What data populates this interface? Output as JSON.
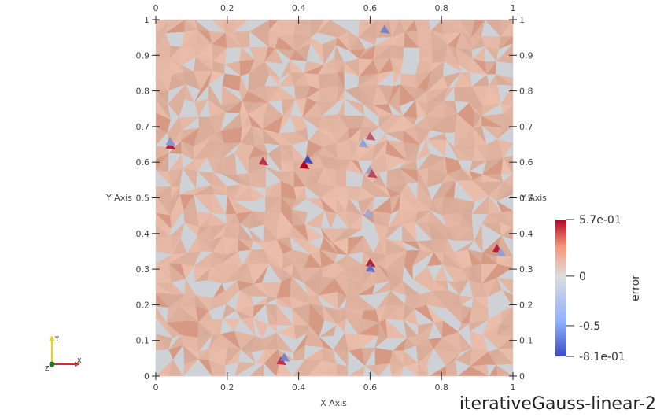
{
  "chart_data": {
    "type": "heatmap",
    "title": "iterativeGauss-linear-2",
    "xlabel": "X Axis",
    "ylabel": "Y Axis",
    "xlim": [
      0,
      1
    ],
    "ylim": [
      0,
      1
    ],
    "x_ticks": [
      "0",
      "0.2",
      "0.4",
      "0.6",
      "0.8",
      "1"
    ],
    "y_ticks": [
      "0",
      "0.1",
      "0.2",
      "0.3",
      "0.4",
      "0.5",
      "0.6",
      "0.7",
      "0.8",
      "0.9",
      "1"
    ],
    "field": "error",
    "color_range": [
      -0.81,
      0.57
    ],
    "colorbar_labels": [
      "5.7e-01",
      "0",
      "-0.5",
      "-8.1e-01"
    ],
    "colorbar_label_values": [
      0.57,
      0,
      -0.5,
      -0.81
    ],
    "colormap": {
      "low": "#3b4cc0",
      "mid": "#dddddd",
      "high": "#b40426"
    },
    "background_cell_color": "#e0b4a0",
    "grid": false,
    "legend": "right",
    "hotspots": [
      {
        "x": 0.04,
        "y": 0.645,
        "value": 0.5
      },
      {
        "x": 0.04,
        "y": 0.655,
        "value": -0.4
      },
      {
        "x": 0.425,
        "y": 0.605,
        "value": -0.81
      },
      {
        "x": 0.415,
        "y": 0.59,
        "value": 0.57
      },
      {
        "x": 0.3,
        "y": 0.6,
        "value": 0.45
      },
      {
        "x": 0.6,
        "y": 0.315,
        "value": 0.5
      },
      {
        "x": 0.6,
        "y": 0.3,
        "value": -0.6
      },
      {
        "x": 0.35,
        "y": 0.04,
        "value": 0.45
      },
      {
        "x": 0.36,
        "y": 0.05,
        "value": -0.5
      },
      {
        "x": 0.64,
        "y": 0.97,
        "value": -0.5
      },
      {
        "x": 0.955,
        "y": 0.355,
        "value": 0.5
      },
      {
        "x": 0.965,
        "y": 0.345,
        "value": -0.35
      },
      {
        "x": 0.6,
        "y": 0.575,
        "value": -0.35
      },
      {
        "x": 0.605,
        "y": 0.565,
        "value": 0.4
      },
      {
        "x": 0.595,
        "y": 0.455,
        "value": -0.3
      },
      {
        "x": 0.58,
        "y": 0.65,
        "value": -0.35
      },
      {
        "x": 0.6,
        "y": 0.67,
        "value": 0.35
      }
    ]
  },
  "orientation_axes": {
    "x_label": "X",
    "y_label": "Y",
    "z_label": "Z"
  }
}
